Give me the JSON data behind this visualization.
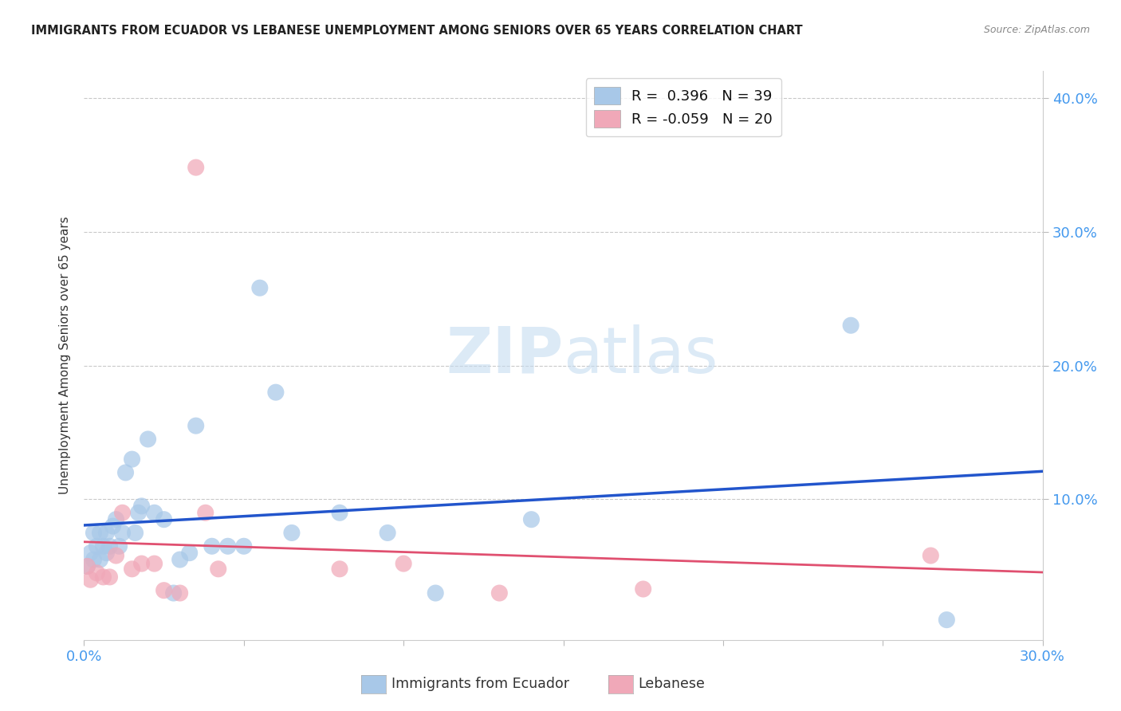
{
  "title": "IMMIGRANTS FROM ECUADOR VS LEBANESE UNEMPLOYMENT AMONG SENIORS OVER 65 YEARS CORRELATION CHART",
  "source": "Source: ZipAtlas.com",
  "ylabel": "Unemployment Among Seniors over 65 years",
  "xlim": [
    0.0,
    0.3
  ],
  "ylim": [
    -0.005,
    0.42
  ],
  "xticks": [
    0.0,
    0.05,
    0.1,
    0.15,
    0.2,
    0.25,
    0.3
  ],
  "yticks": [
    0.1,
    0.2,
    0.3,
    0.4
  ],
  "legend_blue_r": "0.396",
  "legend_blue_n": "39",
  "legend_pink_r": "-0.059",
  "legend_pink_n": "20",
  "legend_label_blue": "Immigrants from Ecuador",
  "legend_label_pink": "Lebanese",
  "blue_scatter_color": "#A8C8E8",
  "pink_scatter_color": "#F0A8B8",
  "blue_line_color": "#2255CC",
  "pink_line_color": "#E05070",
  "tick_color": "#4499EE",
  "grid_color": "#BBBBBB",
  "watermark_color": "#C5DCF0",
  "background_color": "#FFFFFF",
  "title_color": "#222222",
  "source_color": "#888888",
  "ylabel_color": "#333333",
  "blue_x": [
    0.001,
    0.002,
    0.003,
    0.003,
    0.004,
    0.005,
    0.005,
    0.006,
    0.007,
    0.007,
    0.008,
    0.009,
    0.01,
    0.011,
    0.012,
    0.013,
    0.015,
    0.016,
    0.017,
    0.018,
    0.02,
    0.022,
    0.025,
    0.028,
    0.03,
    0.033,
    0.035,
    0.04,
    0.045,
    0.05,
    0.055,
    0.06,
    0.065,
    0.08,
    0.095,
    0.11,
    0.14,
    0.24,
    0.27
  ],
  "blue_y": [
    0.05,
    0.06,
    0.055,
    0.075,
    0.065,
    0.055,
    0.075,
    0.065,
    0.075,
    0.06,
    0.065,
    0.08,
    0.085,
    0.065,
    0.075,
    0.12,
    0.13,
    0.075,
    0.09,
    0.095,
    0.145,
    0.09,
    0.085,
    0.03,
    0.055,
    0.06,
    0.155,
    0.065,
    0.065,
    0.065,
    0.258,
    0.18,
    0.075,
    0.09,
    0.075,
    0.03,
    0.085,
    0.23,
    0.01
  ],
  "pink_x": [
    0.001,
    0.002,
    0.004,
    0.006,
    0.008,
    0.01,
    0.012,
    0.015,
    0.018,
    0.022,
    0.025,
    0.03,
    0.035,
    0.038,
    0.042,
    0.08,
    0.1,
    0.13,
    0.175,
    0.265
  ],
  "pink_y": [
    0.05,
    0.04,
    0.045,
    0.042,
    0.042,
    0.058,
    0.09,
    0.048,
    0.052,
    0.052,
    0.032,
    0.03,
    0.348,
    0.09,
    0.048,
    0.048,
    0.052,
    0.03,
    0.033,
    0.058
  ]
}
